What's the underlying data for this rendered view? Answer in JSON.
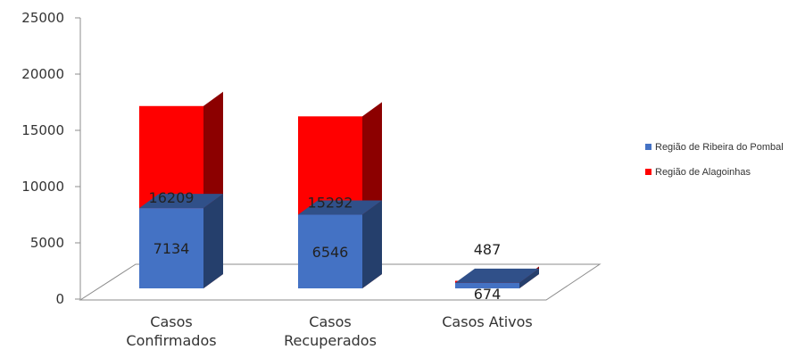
{
  "chart_data": {
    "type": "bar",
    "stacked": true,
    "three_d": true,
    "categories": [
      "Casos\nConfirmados",
      "Casos\nRecuperados",
      "Casos Ativos"
    ],
    "series": [
      {
        "name": "Região de Alagoinhas",
        "color": "#ff0000",
        "values": [
          16209,
          15292,
          674
        ]
      },
      {
        "name": "Região de Ribeira do Pombal",
        "color": "#4472c4",
        "values": [
          7134,
          6546,
          487
        ]
      }
    ],
    "ylim": [
      0,
      25000
    ],
    "yticks": [
      "0",
      "5000",
      "10000",
      "15000",
      "20000",
      "25000"
    ],
    "data_labels": [
      [
        "16209",
        "15292",
        "674"
      ],
      [
        "7134",
        "6546",
        "487"
      ]
    ],
    "grid": false,
    "legend_position": "right"
  }
}
